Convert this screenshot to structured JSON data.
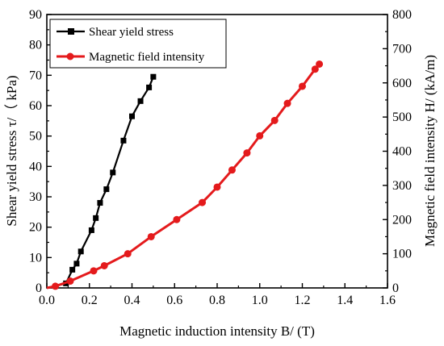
{
  "chart_data": {
    "type": "line",
    "x_axis": {
      "label": "Magnetic induction intensity B/ (T)",
      "range": [
        0.0,
        1.6
      ],
      "ticks": [
        "0.0",
        "0.2",
        "0.4",
        "0.6",
        "0.8",
        "1.0",
        "1.2",
        "1.4",
        "1.6"
      ]
    },
    "y_left_axis": {
      "label": "Shear yield stress τ/（ kPa)",
      "range": [
        0,
        90
      ],
      "ticks": [
        "0",
        "10",
        "20",
        "30",
        "40",
        "50",
        "60",
        "70",
        "80",
        "90"
      ]
    },
    "y_right_axis": {
      "label": "Magnetic field intensity H/ (kA/m)",
      "range": [
        0,
        800
      ],
      "ticks": [
        "0",
        "100",
        "200",
        "300",
        "400",
        "500",
        "600",
        "700",
        "800"
      ]
    },
    "legend_position": "top-left",
    "series": [
      {
        "name": "Shear yield stress",
        "axis": "left",
        "color": "#000000",
        "marker": "square",
        "x": [
          0.0,
          0.09,
          0.12,
          0.14,
          0.16,
          0.21,
          0.23,
          0.25,
          0.28,
          0.31,
          0.36,
          0.4,
          0.44,
          0.48,
          0.5
        ],
        "y": [
          0.0,
          1.5,
          6.0,
          8.0,
          12.0,
          19.0,
          23.0,
          28.0,
          32.5,
          38.0,
          48.5,
          56.5,
          61.5,
          66.0,
          69.5
        ]
      },
      {
        "name": "Magnetic field intensity",
        "axis": "right",
        "color": "#e41a1c",
        "marker": "circle",
        "x": [
          0.0,
          0.04,
          0.11,
          0.22,
          0.27,
          0.38,
          0.49,
          0.61,
          0.73,
          0.8,
          0.87,
          0.94,
          1.0,
          1.07,
          1.13,
          1.2,
          1.26,
          1.28
        ],
        "y": [
          0,
          5,
          20,
          50,
          65,
          100,
          150,
          200,
          250,
          295,
          345,
          395,
          445,
          490,
          540,
          590,
          640,
          655
        ]
      }
    ]
  }
}
